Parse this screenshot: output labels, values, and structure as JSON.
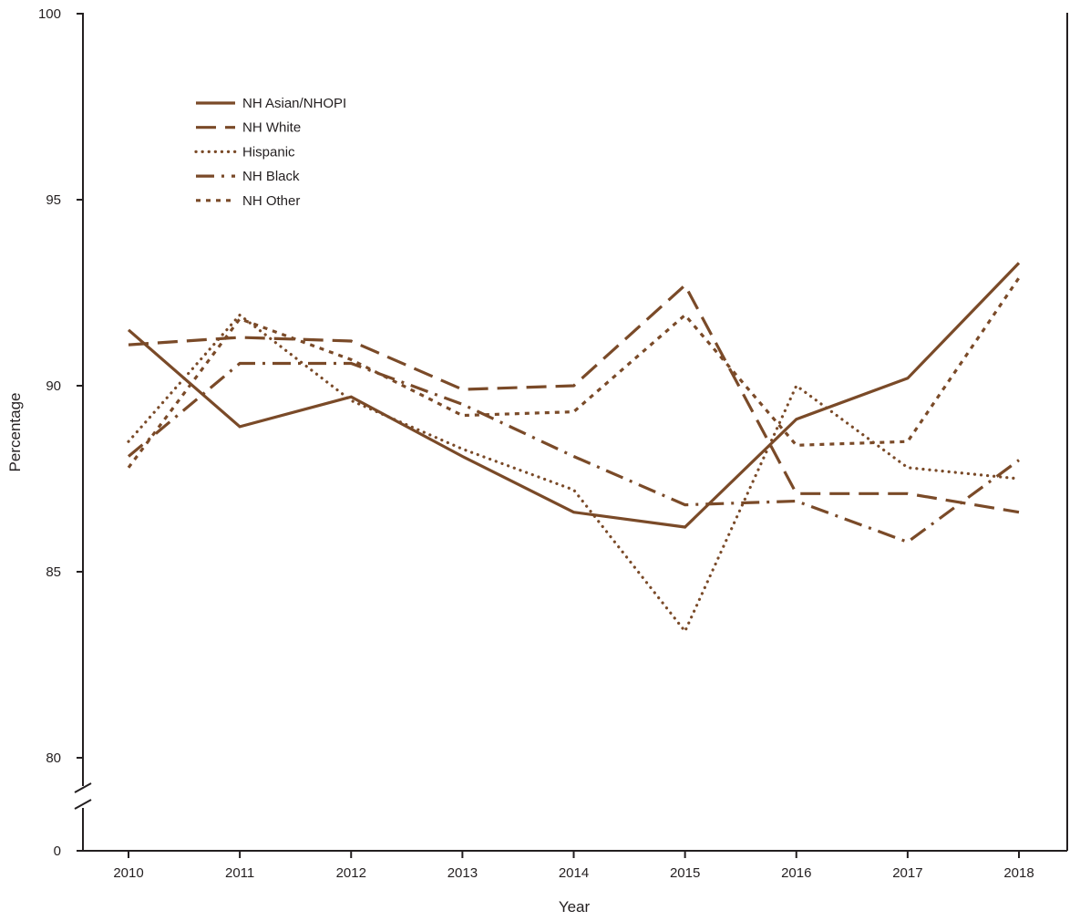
{
  "chart_data": {
    "type": "line",
    "title": "",
    "xlabel": "Year",
    "ylabel": "Percentage",
    "x": [
      2010,
      2011,
      2012,
      2013,
      2014,
      2015,
      2016,
      2017,
      2018
    ],
    "x_tick_labels": [
      "2010",
      "2011",
      "2012",
      "2013",
      "2014",
      "2015",
      "2016",
      "2017",
      "2018"
    ],
    "ylim": [
      80,
      100
    ],
    "y_ticks": [
      80,
      85,
      90,
      95,
      100
    ],
    "y_tick_labels": [
      "80",
      "85",
      "90",
      "95",
      "100"
    ],
    "y_axis_break": true,
    "y_break_baseline_label": "0",
    "line_color": "#7a4a28",
    "legend_position": "top-left",
    "series": [
      {
        "name": "NH Asian/NHOPI",
        "style": "solid",
        "values": [
          91.5,
          88.9,
          89.7,
          88.1,
          86.6,
          86.2,
          89.1,
          90.2,
          93.3
        ]
      },
      {
        "name": "NH White",
        "style": "dashed",
        "values": [
          91.1,
          91.3,
          91.2,
          89.9,
          90.0,
          92.7,
          87.1,
          87.1,
          86.6
        ]
      },
      {
        "name": "Hispanic",
        "style": "dotted",
        "values": [
          88.5,
          91.9,
          89.6,
          88.3,
          87.2,
          83.4,
          90.0,
          87.8,
          87.5
        ]
      },
      {
        "name": "NH Black",
        "style": "dash-dot",
        "values": [
          88.1,
          90.6,
          90.6,
          89.5,
          88.1,
          86.8,
          86.9,
          85.8,
          88.0
        ]
      },
      {
        "name": "NH Other",
        "style": "short-dash",
        "values": [
          87.8,
          91.8,
          90.7,
          89.2,
          89.3,
          91.9,
          88.4,
          88.5,
          92.9
        ]
      }
    ]
  }
}
